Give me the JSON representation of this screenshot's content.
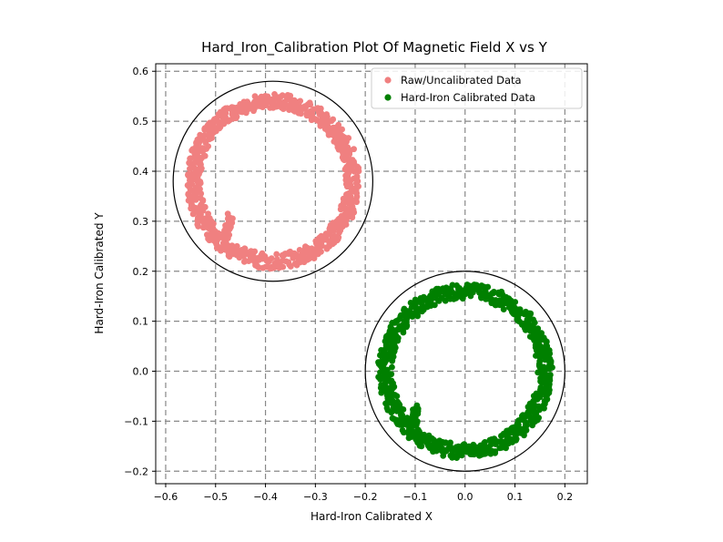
{
  "chart_data": {
    "type": "scatter",
    "title": "Hard_Iron_Calibration Plot Of Magnetic Field X vs Y",
    "xlabel": "Hard-Iron Calibrated X",
    "ylabel": "Hard-Iron Calibrated Y",
    "xlim": [
      -0.62,
      0.245
    ],
    "ylim": [
      -0.225,
      0.615
    ],
    "xticks": [
      -0.6,
      -0.5,
      -0.4,
      -0.3,
      -0.2,
      -0.1,
      0.0,
      0.1,
      0.2
    ],
    "xtick_labels": [
      "−0.6",
      "−0.5",
      "−0.4",
      "−0.3",
      "−0.2",
      "−0.1",
      "0.0",
      "0.1",
      "0.2"
    ],
    "yticks": [
      -0.2,
      -0.1,
      0.0,
      0.1,
      0.2,
      0.3,
      0.4,
      0.5,
      0.6
    ],
    "ytick_labels": [
      "−0.2",
      "−0.1",
      "0.0",
      "0.1",
      "0.2",
      "0.3",
      "0.4",
      "0.5",
      "0.6"
    ],
    "grid": true,
    "legend_position": "top-right",
    "series": [
      {
        "name": "Raw/Uncalibrated Data",
        "color": "#f08080",
        "ring": {
          "center": [
            -0.385,
            0.38
          ],
          "radius": 0.16,
          "thickness": 0.03
        },
        "inner_tail": {
          "from": [
            -0.48,
            0.27
          ],
          "to": [
            -0.47,
            0.31
          ]
        }
      },
      {
        "name": "Hard-Iron Calibrated Data",
        "color": "#008000",
        "ring": {
          "center": [
            0.0,
            0.0
          ],
          "radius": 0.16,
          "thickness": 0.03
        },
        "inner_tail": {
          "from": [
            -0.1,
            -0.11
          ],
          "to": [
            -0.1,
            -0.07
          ]
        }
      }
    ],
    "fitted_circles": [
      {
        "center": [
          -0.385,
          0.38
        ],
        "radius": 0.2,
        "color": "#000000"
      },
      {
        "center": [
          0.0,
          0.0
        ],
        "radius": 0.2,
        "color": "#000000"
      }
    ]
  }
}
